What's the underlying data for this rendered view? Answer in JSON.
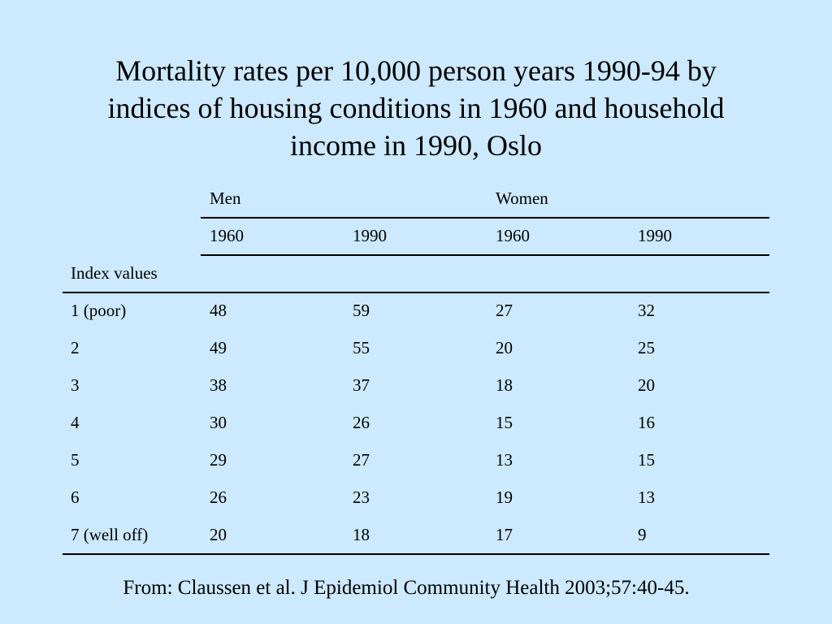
{
  "title": {
    "line1": "Mortality rates per 10,000 person years 1990-94 by",
    "line2": "indices of housing conditions in 1960 and household",
    "line3": "income in 1990, Oslo"
  },
  "table": {
    "group_headers": [
      "Men",
      "Women"
    ],
    "year_headers": [
      "1960",
      "1990",
      "1960",
      "1990"
    ],
    "index_label": "Index values",
    "rows": [
      [
        "1 (poor)",
        "48",
        "59",
        "27",
        "32"
      ],
      [
        "2",
        "49",
        "55",
        "20",
        "25"
      ],
      [
        "3",
        "38",
        "37",
        "18",
        "20"
      ],
      [
        "4",
        "30",
        "26",
        "15",
        "16"
      ],
      [
        "5",
        "29",
        "27",
        "13",
        "15"
      ],
      [
        "6",
        "26",
        "23",
        "19",
        "13"
      ],
      [
        "7 (well off)",
        "20",
        "18",
        "17",
        "9"
      ]
    ]
  },
  "source": "From: Claussen et al. J Epidemiol Community Health 2003;57:40-45."
}
